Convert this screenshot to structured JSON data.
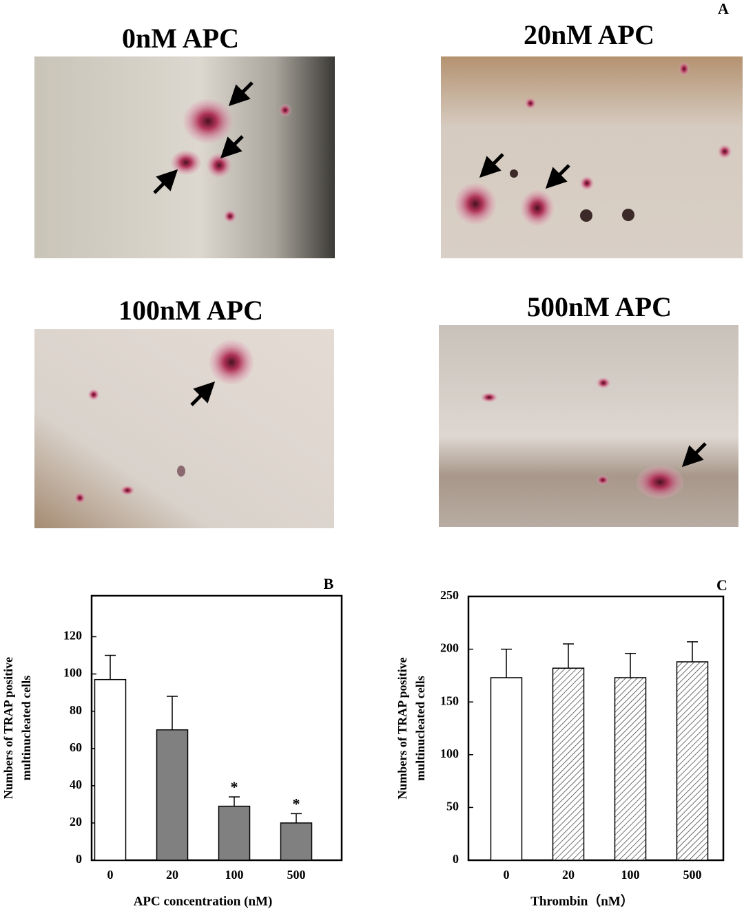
{
  "panel_a": {
    "label": "A",
    "images": [
      {
        "title": "0nM APC"
      },
      {
        "title": "20nM APC"
      },
      {
        "title": "100nM APC"
      },
      {
        "title": "500nM APC"
      }
    ]
  },
  "chart_data": [
    {
      "type": "bar",
      "label": "B",
      "ylabel": [
        "Numbers of TRAP positive",
        "multinucleated  cells"
      ],
      "xlabel": "APC concentration (nM)",
      "categories": [
        "0",
        "20",
        "100",
        "500"
      ],
      "values": [
        97,
        70,
        29,
        20
      ],
      "errors": [
        13,
        18,
        5,
        5
      ],
      "colors": [
        "#ffffff",
        "#808080",
        "#808080",
        "#808080"
      ],
      "hatch": [
        false,
        false,
        false,
        false
      ],
      "annotations": [
        {
          "category": "100",
          "text": "*"
        },
        {
          "category": "500",
          "text": "*"
        }
      ],
      "ylim": [
        0,
        142
      ],
      "yticks": [
        0,
        20,
        40,
        60,
        80,
        100,
        120
      ]
    },
    {
      "type": "bar",
      "label": "C",
      "ylabel": [
        "Numbers of TRAP positive",
        "multinucleated  cells"
      ],
      "xlabel": "Thrombin（nM）",
      "categories": [
        "0",
        "20",
        "100",
        "500"
      ],
      "values": [
        173,
        182,
        173,
        188
      ],
      "errors": [
        27,
        23,
        23,
        19
      ],
      "colors": [
        "#ffffff",
        "#ffffff",
        "#ffffff",
        "#ffffff"
      ],
      "hatch": [
        false,
        true,
        true,
        true
      ],
      "annotations": [],
      "ylim": [
        0,
        250
      ],
      "yticks": [
        0,
        50,
        100,
        150,
        200,
        250
      ]
    }
  ]
}
